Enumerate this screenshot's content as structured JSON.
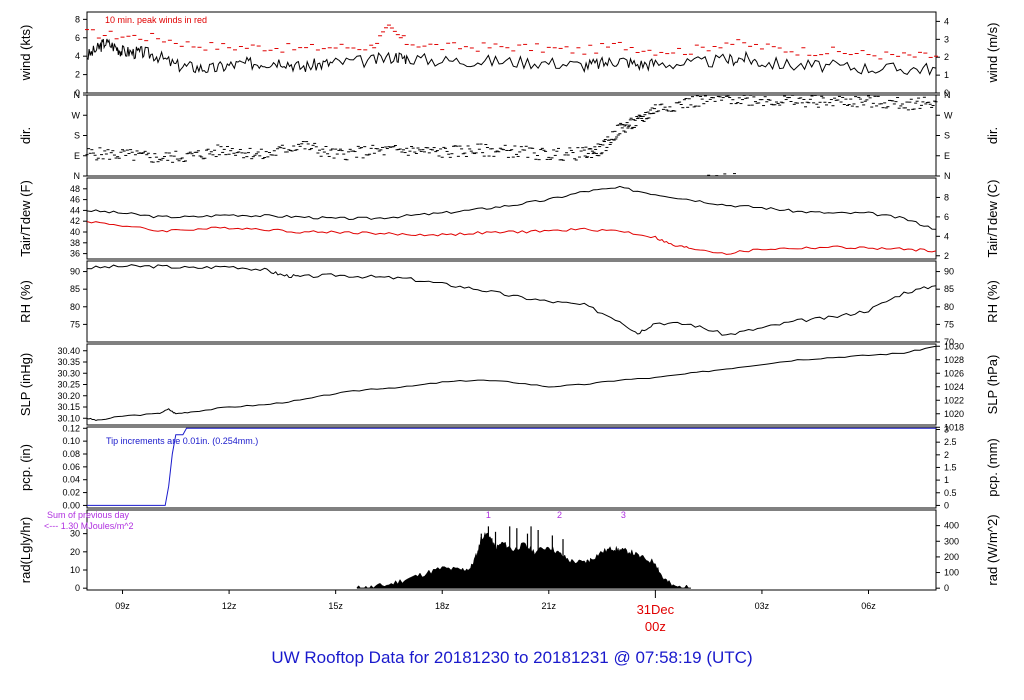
{
  "footer_title": "UW Rooftop Data for 20181230  to  20181231 @ 07:58:19  (UTC)",
  "colors": {
    "black": "#000000",
    "red": "#e00000",
    "blue": "#1a1acc",
    "purple": "#b030e0"
  },
  "chart_data": [
    {
      "type": "line",
      "ylabel": "wind (kts)",
      "ylabel_right": "wind (m/s)",
      "ylim": [
        0,
        8.8
      ],
      "yticks": [
        0,
        2,
        4,
        6,
        8
      ],
      "yticks_right": [
        {
          "label": "0",
          "value": 0
        },
        {
          "label": "1",
          "value": 1.94
        },
        {
          "label": "2",
          "value": 3.89
        },
        {
          "label": "3",
          "value": 5.83
        },
        {
          "label": "4",
          "value": 7.78
        }
      ],
      "annotation": "10 min. peak winds in red",
      "series": [
        {
          "values_kind": "mean_wind",
          "color": "#000000",
          "x": [
            8.0,
            8.3,
            8.5,
            8.8,
            9.0,
            9.3,
            9.6,
            10.0,
            10.5,
            11.0,
            11.5,
            12.0,
            12.5,
            13.0,
            13.5,
            14.0,
            14.5,
            15.0,
            16.0,
            16.7,
            17.0,
            18.0,
            19.0,
            20.0,
            21.0,
            22.0,
            22.5,
            23.0,
            23.5,
            24.0,
            25.0,
            26.0,
            26.5,
            27.0,
            28.0,
            29.0,
            30.0,
            31.0,
            31.9
          ],
          "y": [
            4.0,
            4.8,
            5.5,
            5.0,
            4.5,
            4.4,
            4.4,
            4.0,
            3.0,
            2.8,
            2.6,
            3.0,
            3.2,
            3.3,
            3.5,
            2.8,
            3.1,
            3.3,
            3.5,
            4.0,
            3.8,
            3.5,
            3.5,
            3.4,
            3.3,
            3.0,
            3.2,
            3.6,
            3.1,
            3.2,
            3.2,
            3.6,
            3.8,
            3.3,
            3.0,
            2.9,
            2.7,
            2.6,
            2.7
          ]
        },
        {
          "values_kind": "peak_wind_10min",
          "color": "#e00000",
          "x": [
            8.0,
            9.0,
            10.0,
            11.0,
            12.0,
            13.0,
            14.0,
            15.0,
            16.0,
            16.5,
            17.0,
            18.0,
            19.0,
            20.0,
            21.0,
            22.0,
            23.0,
            24.0,
            25.0,
            26.0,
            27.0,
            28.0,
            29.0,
            30.0,
            31.0,
            31.9
          ],
          "y": [
            6.5,
            6.2,
            6.0,
            5.2,
            5.0,
            5.0,
            4.8,
            5.0,
            5.0,
            7.0,
            5.5,
            5.0,
            5.0,
            5.0,
            4.8,
            4.6,
            5.2,
            4.6,
            4.6,
            5.5,
            5.0,
            4.6,
            4.5,
            4.2,
            4.0,
            4.0
          ]
        }
      ]
    },
    {
      "type": "scatter",
      "ylabel": "dir.",
      "ylabel_right": "dir.",
      "y_categories": [
        "N",
        "E",
        "S",
        "W",
        "N"
      ],
      "ylim": [
        0,
        360
      ],
      "series": [
        {
          "name": "",
          "color": "#000000",
          "x": [
            8.0,
            9.0,
            10.0,
            11.0,
            12.0,
            13.0,
            14.0,
            15.0,
            16.0,
            17.0,
            18.0,
            19.0,
            20.0,
            21.0,
            22.0,
            22.5,
            23.0,
            23.5,
            24.0,
            25.0,
            26.0,
            27.0,
            28.0,
            29.0,
            30.0,
            31.0,
            31.9
          ],
          "y": [
            100,
            95,
            80,
            90,
            120,
            90,
            140,
            95,
            110,
            115,
            105,
            115,
            110,
            95,
            100,
            120,
            210,
            240,
            300,
            330,
            345,
            340,
            330,
            335,
            330,
            320,
            330
          ]
        }
      ]
    },
    {
      "type": "line",
      "ylabel": "Tair/Tdew (F)",
      "ylabel_right": "Tair/Tdew (C)",
      "ylim": [
        35,
        50
      ],
      "yticks": [
        36,
        38,
        40,
        42,
        44,
        46,
        48
      ],
      "yticks_right": [
        {
          "label": "2",
          "value": 35.6
        },
        {
          "label": "4",
          "value": 39.2
        },
        {
          "label": "6",
          "value": 42.8
        },
        {
          "label": "8",
          "value": 46.4
        }
      ],
      "series": [
        {
          "name": "Tair",
          "color": "#000000",
          "x": [
            8.0,
            9.0,
            10.0,
            11.0,
            12.0,
            13.0,
            14.0,
            15.0,
            16.0,
            17.0,
            18.0,
            19.0,
            20.0,
            21.0,
            22.0,
            23.0,
            24.0,
            25.0,
            26.0,
            27.0,
            28.0,
            29.0,
            30.0,
            31.0,
            31.9
          ],
          "y": [
            44.0,
            43.5,
            42.8,
            42.8,
            43.2,
            43.0,
            42.8,
            42.5,
            42.5,
            43.0,
            43.5,
            44.2,
            45.0,
            46.0,
            47.5,
            48.2,
            47.0,
            46.0,
            45.0,
            44.5,
            43.8,
            43.5,
            43.5,
            42.5,
            40.5
          ]
        },
        {
          "name": "Tdew",
          "color": "#e00000",
          "x": [
            8.0,
            9.0,
            10.0,
            11.0,
            12.0,
            13.0,
            14.0,
            15.0,
            16.0,
            17.0,
            18.0,
            19.0,
            20.0,
            21.0,
            22.0,
            23.0,
            24.0,
            24.5,
            25.0,
            26.0,
            27.0,
            28.0,
            29.0,
            30.0,
            31.0,
            31.9
          ],
          "y": [
            42.0,
            41.2,
            40.2,
            40.5,
            40.8,
            40.5,
            40.0,
            40.0,
            39.8,
            39.5,
            39.5,
            39.8,
            40.0,
            40.2,
            40.5,
            40.2,
            39.0,
            37.5,
            37.0,
            36.0,
            36.8,
            37.0,
            37.2,
            37.0,
            36.8,
            36.5
          ]
        }
      ]
    },
    {
      "type": "line",
      "ylabel": "RH (%)",
      "ylabel_right": "RH (%)",
      "ylim": [
        70,
        93
      ],
      "yticks": [
        75,
        80,
        85,
        90
      ],
      "yticks_right": [
        {
          "label": "70",
          "value": 70
        },
        {
          "label": "75",
          "value": 75
        },
        {
          "label": "80",
          "value": 80
        },
        {
          "label": "85",
          "value": 85
        },
        {
          "label": "90",
          "value": 90
        }
      ],
      "series": [
        {
          "name": "",
          "color": "#000000",
          "x": [
            8.0,
            9.0,
            10.0,
            11.0,
            12.0,
            13.0,
            13.5,
            14.0,
            15.0,
            16.0,
            17.0,
            18.0,
            19.0,
            20.0,
            21.0,
            22.0,
            23.0,
            23.5,
            24.0,
            25.0,
            26.0,
            27.0,
            28.0,
            29.0,
            30.0,
            31.0,
            31.9
          ],
          "y": [
            91.0,
            91.5,
            91.5,
            91.0,
            91.5,
            90.5,
            89.0,
            88.5,
            89.0,
            88.5,
            88.0,
            86.5,
            85.0,
            83.0,
            81.5,
            80.5,
            76.0,
            72.5,
            75.5,
            75.0,
            72.0,
            74.0,
            76.0,
            77.0,
            79.0,
            84.0,
            86.0
          ]
        }
      ]
    },
    {
      "type": "line",
      "ylabel": "SLP (inHg)",
      "ylabel_right": "SLP (hPa)",
      "ylim": [
        30.07,
        30.43
      ],
      "yticks": [
        30.1,
        30.15,
        30.2,
        30.25,
        30.3,
        30.35,
        30.4
      ],
      "yticks_right": [
        {
          "label": "1018",
          "value": 30.06
        },
        {
          "label": "1020",
          "value": 30.12
        },
        {
          "label": "1022",
          "value": 30.18
        },
        {
          "label": "1024",
          "value": 30.24
        },
        {
          "label": "1026",
          "value": 30.3
        },
        {
          "label": "1028",
          "value": 30.36
        },
        {
          "label": "1030",
          "value": 30.42
        }
      ],
      "series": [
        {
          "name": "",
          "color": "#000000",
          "x": [
            8.0,
            8.3,
            9.0,
            10.0,
            10.3,
            10.5,
            11.0,
            12.0,
            13.0,
            14.0,
            15.0,
            16.0,
            17.0,
            18.0,
            19.0,
            20.0,
            21.0,
            22.0,
            23.0,
            24.0,
            25.0,
            26.0,
            27.0,
            28.0,
            29.0,
            30.0,
            31.0,
            31.9
          ],
          "y": [
            30.1,
            30.09,
            30.11,
            30.12,
            30.14,
            30.12,
            30.13,
            30.15,
            30.16,
            30.18,
            30.21,
            30.23,
            30.24,
            30.26,
            30.27,
            30.26,
            30.24,
            30.25,
            30.27,
            30.28,
            30.3,
            30.32,
            30.34,
            30.36,
            30.37,
            30.38,
            30.39,
            30.42
          ]
        }
      ]
    },
    {
      "type": "line",
      "ylabel": "pcp. (in)",
      "ylabel_right": "pcp. (mm)",
      "ylim": [
        -0.004,
        0.122
      ],
      "yticks": [
        0.0,
        0.02,
        0.04,
        0.06,
        0.08,
        0.1,
        0.12
      ],
      "yticks_right": [
        {
          "label": "0",
          "value": 0
        },
        {
          "label": "0.5",
          "value": 0.0197
        },
        {
          "label": "1",
          "value": 0.0394
        },
        {
          "label": "1.5",
          "value": 0.0591
        },
        {
          "label": "2",
          "value": 0.0787
        },
        {
          "label": "2.5",
          "value": 0.0984
        },
        {
          "label": "3",
          "value": 0.1181
        }
      ],
      "annotation": "Tip increments are 0.01in. (0.254mm.)",
      "series": [
        {
          "name": "",
          "color": "#1a1acc",
          "x": [
            8.0,
            10.2,
            10.3,
            10.4,
            10.5,
            10.7,
            10.8,
            31.9
          ],
          "y": [
            0.0,
            0.0,
            0.03,
            0.08,
            0.11,
            0.11,
            0.12,
            0.12
          ]
        }
      ]
    },
    {
      "type": "area",
      "ylabel": "rad(Lgly/hr)",
      "ylabel_right": "rad (W/m^2)",
      "ylim": [
        -1,
        43
      ],
      "yticks": [
        0,
        10,
        20,
        30
      ],
      "yticks_right": [
        {
          "label": "0",
          "value": 0
        },
        {
          "label": "100",
          "value": 8.6
        },
        {
          "label": "200",
          "value": 17.2
        },
        {
          "label": "300",
          "value": 25.8
        },
        {
          "label": "400",
          "value": 34.4
        }
      ],
      "annotation_lines": [
        "Sum of previous day",
        "<--- 1.30 MJoules/m^2"
      ],
      "annotation_overlap": "30",
      "marker_labels": [
        {
          "label": "1",
          "x": 19.3
        },
        {
          "label": "2",
          "x": 21.3
        },
        {
          "label": "3",
          "x": 23.1
        }
      ],
      "series": [
        {
          "name": "",
          "color": "#000000",
          "x": [
            15.6,
            16.0,
            16.5,
            17.0,
            17.5,
            18.0,
            18.5,
            18.8,
            19.0,
            19.1,
            19.3,
            19.5,
            19.7,
            20.0,
            20.3,
            20.6,
            21.0,
            21.3,
            21.6,
            22.0,
            22.2,
            22.5,
            22.8,
            23.0,
            23.3,
            23.6,
            24.0,
            24.2,
            24.5,
            25.0
          ],
          "y": [
            0.0,
            0.5,
            2.0,
            5.0,
            8.0,
            11.0,
            10.0,
            11.0,
            20.0,
            28.0,
            30.0,
            22.0,
            25.0,
            21.0,
            24.0,
            20.0,
            23.0,
            19.0,
            15.0,
            14.0,
            16.0,
            20.0,
            22.0,
            21.0,
            20.0,
            17.0,
            14.0,
            6.0,
            1.0,
            0.0
          ]
        },
        {
          "name": "",
          "color": "#000000",
          "kind": "spikes",
          "x": [
            19.1,
            19.3,
            19.5,
            19.9,
            20.1,
            20.4,
            20.5,
            20.7,
            21.1,
            21.4
          ],
          "y": [
            30,
            34,
            31,
            34,
            33,
            30,
            34,
            32,
            29,
            27
          ]
        }
      ]
    }
  ],
  "x_axis": {
    "xlim": [
      8.0,
      31.9
    ],
    "ticks": [
      {
        "label": "09z",
        "value": 9
      },
      {
        "label": "12z",
        "value": 12
      },
      {
        "label": "15z",
        "value": 15
      },
      {
        "label": "18z",
        "value": 18
      },
      {
        "label": "21z",
        "value": 21
      },
      {
        "label": "03z",
        "value": 27
      },
      {
        "label": "06z",
        "value": 30
      }
    ],
    "date_marker": {
      "value": 24,
      "line1": "31Dec",
      "line2": "00z"
    }
  }
}
